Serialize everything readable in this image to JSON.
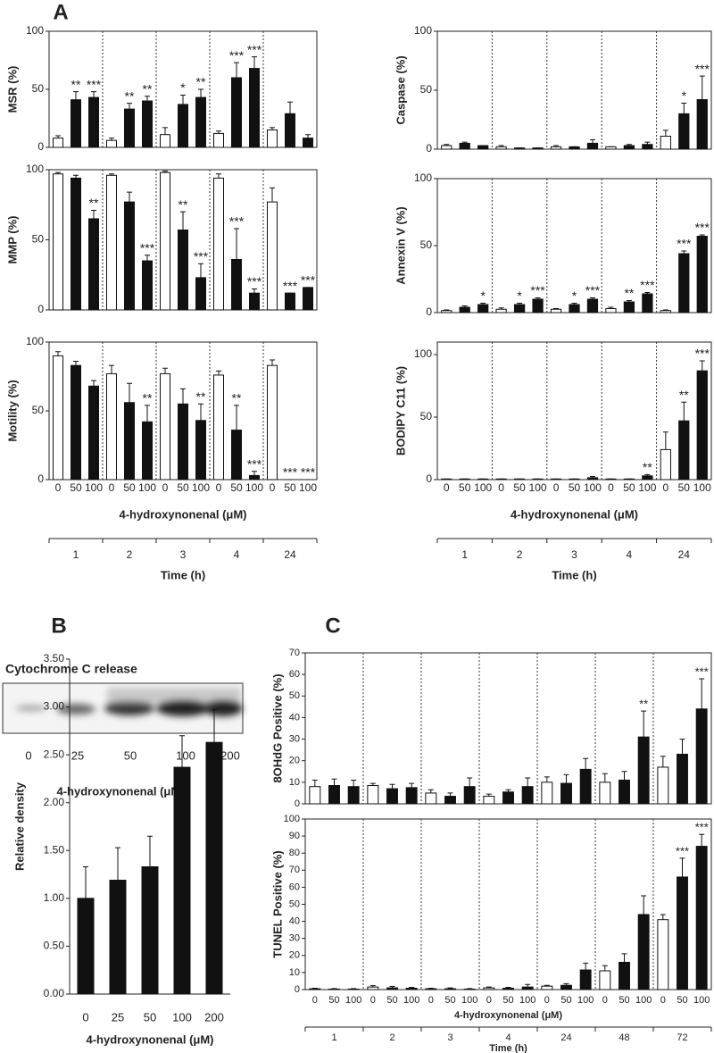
{
  "panels": [
    "A",
    "B",
    "C"
  ],
  "blot": {
    "title": "Cytochrome C release",
    "lanes": [
      "0",
      "25",
      "50",
      "100",
      "200"
    ],
    "xlabel": "4-hydroxynonenal (μM)"
  },
  "chart_data": [
    {
      "type": "bar",
      "ylabel": "MSR (%)",
      "ylim": [
        0,
        100
      ],
      "yticks": [
        0,
        50,
        100
      ],
      "bar_colors": [
        "#ffffff",
        "#111111",
        "#111111"
      ],
      "categories": [
        null,
        null,
        null,
        null,
        null,
        null,
        null,
        null,
        null,
        null,
        null,
        null,
        null,
        null,
        null
      ],
      "values": [
        8,
        41,
        43,
        6,
        33,
        40,
        11,
        37,
        43,
        12,
        60,
        68,
        15,
        29,
        8
      ],
      "errors": [
        2,
        7,
        5,
        2,
        5,
        4,
        6,
        8,
        7,
        2,
        13,
        10,
        2,
        10,
        3
      ],
      "annotations": [
        null,
        "**",
        "***",
        null,
        "**",
        "**",
        null,
        "*",
        "**",
        null,
        "***",
        "***",
        null,
        null,
        null
      ]
    },
    {
      "type": "bar",
      "ylabel": "MMP (%)",
      "ylim": [
        0,
        100
      ],
      "yticks": [
        0,
        50,
        100
      ],
      "bar_colors": [
        "#ffffff",
        "#111111",
        "#111111"
      ],
      "categories": [
        null,
        null,
        null,
        null,
        null,
        null,
        null,
        null,
        null,
        null,
        null,
        null,
        null,
        null,
        null
      ],
      "values": [
        97,
        94,
        65,
        96,
        77,
        35,
        98,
        57,
        23,
        94,
        36,
        12,
        77,
        12,
        16
      ],
      "errors": [
        1,
        2,
        6,
        1,
        7,
        4,
        1,
        13,
        10,
        3,
        22,
        3,
        10,
        0,
        0
      ],
      "annotations": [
        null,
        null,
        "**",
        null,
        null,
        "***",
        null,
        "**",
        "***",
        null,
        "***",
        "***",
        null,
        "***",
        "***"
      ]
    },
    {
      "type": "bar",
      "ylabel": "Motility (%)",
      "ylim": [
        0,
        100
      ],
      "yticks": [
        0,
        50,
        100
      ],
      "bar_colors": [
        "#ffffff",
        "#111111",
        "#111111"
      ],
      "categories": [
        "0",
        "50",
        "100",
        "0",
        "50",
        "100",
        "0",
        "50",
        "100",
        "0",
        "50",
        "100",
        "0",
        "50",
        "100"
      ],
      "values": [
        90,
        83,
        68,
        77,
        56,
        42,
        77,
        55,
        43,
        76,
        36,
        3,
        83,
        0,
        0
      ],
      "errors": [
        3,
        3,
        4,
        6,
        14,
        12,
        4,
        11,
        12,
        3,
        18,
        3,
        4,
        0,
        0
      ],
      "annotations": [
        null,
        null,
        null,
        null,
        null,
        "**",
        null,
        null,
        "**",
        null,
        "**",
        "***",
        null,
        "***",
        "***"
      ],
      "xlabel": "4-hydroxynonenal (μM)",
      "groups": [
        "1",
        "2",
        "3",
        "4",
        "24"
      ],
      "group_label": "Time (h)"
    },
    {
      "type": "bar",
      "ylabel": "Caspase (%)",
      "ylim": [
        0,
        100
      ],
      "yticks": [
        0,
        50,
        100
      ],
      "bar_colors": [
        "#ffffff",
        "#111111",
        "#111111"
      ],
      "categories": [
        null,
        null,
        null,
        null,
        null,
        null,
        null,
        null,
        null,
        null,
        null,
        null,
        null,
        null,
        null
      ],
      "values": [
        3,
        5,
        3,
        2,
        1,
        1,
        2,
        2,
        5,
        2,
        3,
        4,
        11,
        30,
        42
      ],
      "errors": [
        1,
        1,
        0,
        1,
        0,
        0,
        1,
        0,
        3,
        0,
        1,
        2,
        5,
        9,
        20
      ],
      "annotations": [
        null,
        null,
        null,
        null,
        null,
        null,
        null,
        null,
        null,
        null,
        null,
        null,
        null,
        "*",
        "***"
      ]
    },
    {
      "type": "bar",
      "ylabel": "Annexin V (%)",
      "ylim": [
        0,
        100
      ],
      "yticks": [
        0,
        50,
        100
      ],
      "bar_colors": [
        "#ffffff",
        "#111111",
        "#111111"
      ],
      "categories": [
        null,
        null,
        null,
        null,
        null,
        null,
        null,
        null,
        null,
        null,
        null,
        null,
        null,
        null,
        null
      ],
      "values": [
        1.5,
        4,
        6,
        2.5,
        6,
        10,
        2.5,
        6,
        10,
        3,
        8,
        14,
        1.5,
        44,
        57
      ],
      "errors": [
        0.5,
        1,
        1,
        1,
        1,
        1,
        0.5,
        1,
        1,
        1,
        1,
        1,
        0.5,
        2,
        1
      ],
      "annotations": [
        null,
        null,
        "*",
        null,
        "*",
        "***",
        null,
        "*",
        "***",
        null,
        "**",
        "***",
        null,
        "***",
        "***"
      ]
    },
    {
      "type": "bar",
      "ylabel": "BODIPY C11 (%)",
      "ylim": [
        0,
        110
      ],
      "yticks": [
        0,
        50,
        100
      ],
      "bar_colors": [
        "#ffffff",
        "#111111",
        "#111111"
      ],
      "categories": [
        "0",
        "50",
        "100",
        "0",
        "50",
        "100",
        "0",
        "50",
        "100",
        "0",
        "50",
        "100",
        "0",
        "50",
        "100"
      ],
      "values": [
        0.5,
        0.5,
        0.5,
        0.5,
        0.5,
        0.5,
        0.5,
        0.5,
        1.5,
        0.5,
        0.5,
        3,
        24,
        47,
        87
      ],
      "errors": [
        0,
        0,
        0,
        0,
        0,
        0,
        0,
        0,
        1,
        0,
        0,
        1,
        14,
        15,
        8
      ],
      "annotations": [
        null,
        null,
        null,
        null,
        null,
        null,
        null,
        null,
        null,
        null,
        null,
        "**",
        null,
        "**",
        "***"
      ],
      "xlabel": "4-hydroxynonenal (μM)",
      "groups": [
        "1",
        "2",
        "3",
        "4",
        "24"
      ],
      "group_label": "Time (h)"
    },
    {
      "type": "bar",
      "ylabel": "Relative density",
      "ylim": [
        0,
        3.5
      ],
      "bar_colors": [
        "#111111"
      ],
      "yticks": [
        {
          "value": 0,
          "label": "0.00"
        },
        {
          "value": 0.5,
          "label": "0.50"
        },
        {
          "value": 1,
          "label": "1.00"
        },
        {
          "value": 1.5,
          "label": "1.50"
        },
        {
          "value": 2,
          "label": "2.00"
        },
        {
          "value": 2.5,
          "label": "2.50"
        },
        {
          "value": 3,
          "label": "3.00"
        },
        {
          "value": 3.5,
          "label": "3.50"
        }
      ],
      "categories": [
        "0",
        "25",
        "50",
        "100",
        "200"
      ],
      "values": [
        1.0,
        1.19,
        1.33,
        2.37,
        2.63
      ],
      "errors": [
        0.33,
        0.34,
        0.32,
        0.33,
        0.34
      ],
      "xlabel": "4-hydroxynonenal (μM)"
    },
    {
      "type": "bar",
      "ylabel": "8OHdG  Positive (%)",
      "ylim": [
        0,
        70
      ],
      "yticks": [
        0,
        10,
        20,
        30,
        40,
        50,
        60,
        70
      ],
      "bar_colors": [
        "#ffffff",
        "#111111",
        "#111111"
      ],
      "categories": [
        null,
        null,
        null,
        null,
        null,
        null,
        null,
        null,
        null,
        null,
        null,
        null,
        null,
        null,
        null,
        null,
        null,
        null,
        null,
        null,
        null
      ],
      "values": [
        8,
        8.5,
        8,
        8.5,
        7,
        7.5,
        5,
        3.5,
        8,
        3.5,
        5.5,
        8,
        10,
        9.5,
        16,
        10,
        11,
        31,
        17,
        23,
        44
      ],
      "errors": [
        3,
        3,
        3,
        1,
        2,
        2,
        1.5,
        1.5,
        4,
        1,
        1,
        4,
        2.5,
        4,
        5,
        4,
        4,
        12,
        5,
        7,
        14
      ],
      "annotations": [
        null,
        null,
        null,
        null,
        null,
        null,
        null,
        null,
        null,
        null,
        null,
        null,
        null,
        null,
        null,
        null,
        null,
        "**",
        null,
        null,
        "***"
      ]
    },
    {
      "type": "bar",
      "ylabel": "TUNEL Positive (%)",
      "ylim": [
        0,
        100
      ],
      "yticks": [
        0,
        10,
        20,
        30,
        40,
        50,
        60,
        70,
        80,
        90,
        100
      ],
      "bar_colors": [
        "#ffffff",
        "#111111",
        "#111111"
      ],
      "categories": [
        "0",
        "50",
        "100",
        "0",
        "50",
        "100",
        "0",
        "50",
        "100",
        "0",
        "50",
        "100",
        "0",
        "50",
        "100",
        "0",
        "50",
        "100",
        "0",
        "50",
        "100"
      ],
      "values": [
        0.5,
        0.3,
        0.3,
        1.5,
        1,
        0.8,
        0.5,
        0.5,
        0.3,
        1,
        0.8,
        1.5,
        2,
        2.5,
        11.5,
        11,
        16,
        44,
        41,
        66,
        84
      ],
      "errors": [
        0.3,
        0.3,
        0.3,
        0.8,
        0.8,
        0.5,
        0.3,
        0.5,
        0.3,
        0.5,
        0.5,
        1.5,
        0.5,
        1,
        4,
        3,
        5,
        11,
        3,
        11,
        7
      ],
      "annotations": [
        null,
        null,
        null,
        null,
        null,
        null,
        null,
        null,
        null,
        null,
        null,
        null,
        null,
        null,
        null,
        null,
        null,
        null,
        null,
        "***",
        "***"
      ],
      "xlabel": "4-hydroxynonenal (μM)",
      "groups": [
        "1",
        "2",
        "3",
        "4",
        "24",
        "48",
        "72"
      ],
      "group_label": "Time (h)"
    }
  ]
}
